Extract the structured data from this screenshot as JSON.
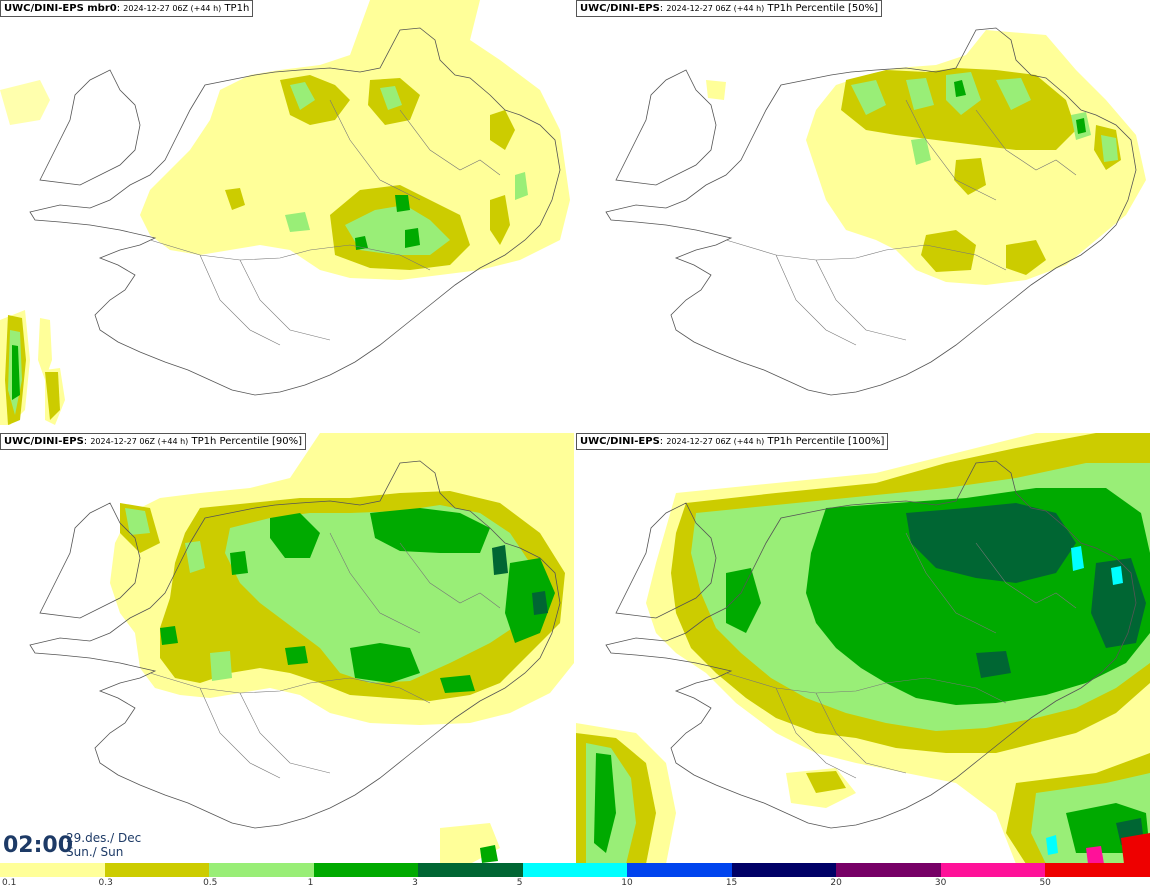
{
  "panels": [
    {
      "model": "UWC/DINI-EPS mbr0",
      "meta": "2024-12-27 06Z (+44 h)",
      "product": "TP1h"
    },
    {
      "model": "UWC/DINI-EPS",
      "meta": "2024-12-27 06Z (+44 h)",
      "product": "TP1h Percentile [50%]"
    },
    {
      "model": "UWC/DINI-EPS",
      "meta": "2024-12-27 06Z (+44 h)",
      "product": "TP1h Percentile [90%]"
    },
    {
      "model": "UWC/DINI-EPS",
      "meta": "2024-12-27 06Z (+44 h)",
      "product": "TP1h Percentile [100%]"
    }
  ],
  "valid": {
    "time": "02:00",
    "date": "29.des./ Dec",
    "day": "Sun./ Sun"
  },
  "scale": {
    "colors": [
      "#ffff99",
      "#cccc00",
      "#99ee77",
      "#00aa00",
      "#006633",
      "#00ffff",
      "#0044ee",
      "#000066",
      "#770066",
      "#ff1199",
      "#ee0000"
    ],
    "ticks": [
      "0.1",
      "0.3",
      "0.5",
      "1",
      "3",
      "5",
      "10",
      "15",
      "20",
      "30",
      "50"
    ]
  }
}
